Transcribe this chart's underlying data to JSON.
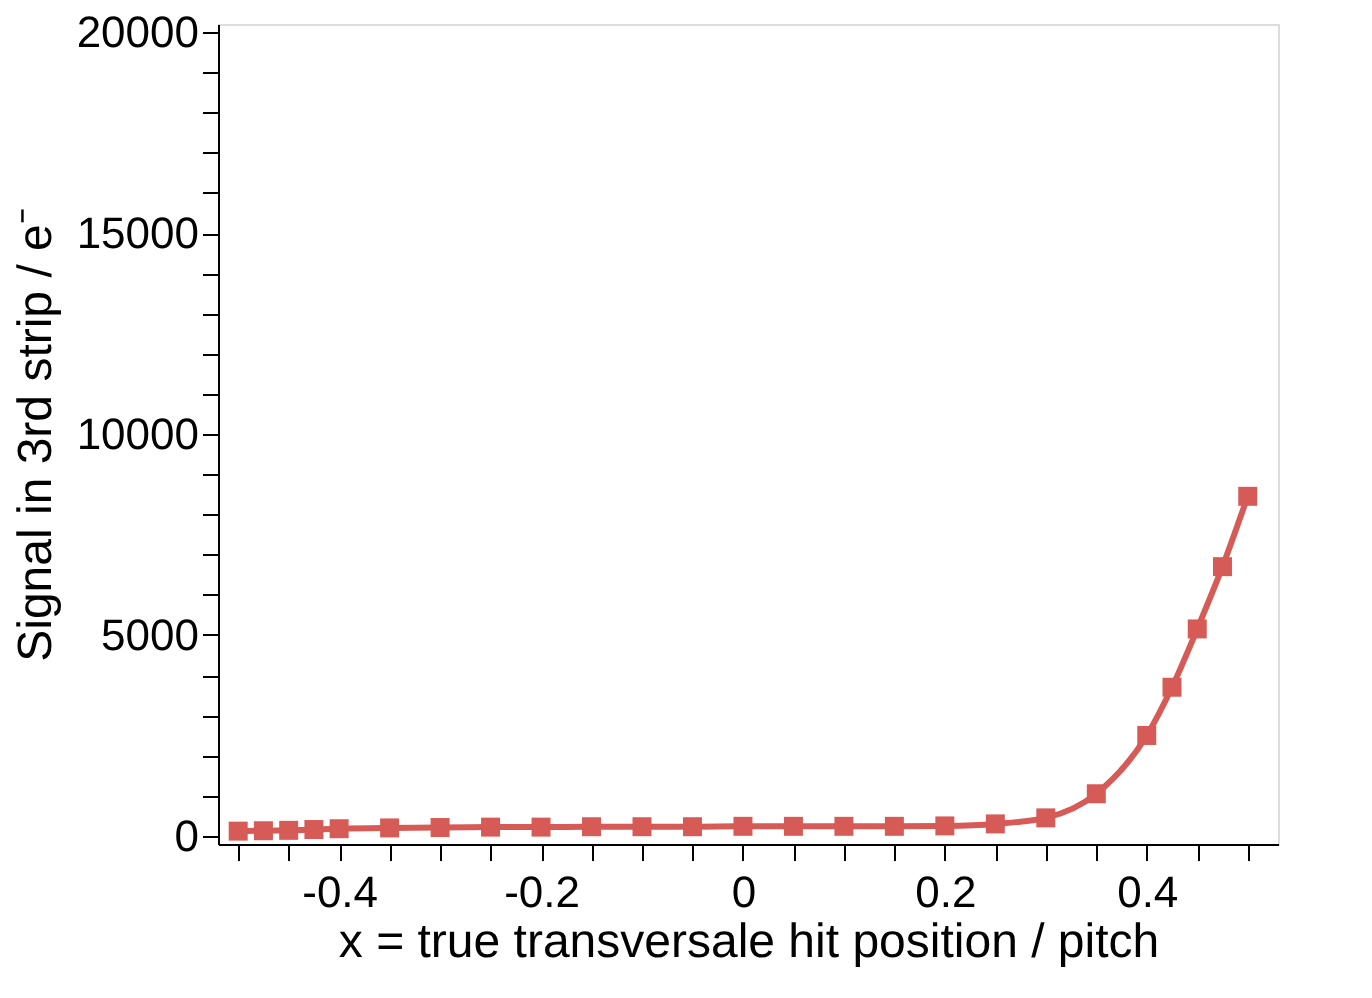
{
  "chart_data": {
    "type": "line",
    "xlabel": "x = true transversale hit position / pitch",
    "ylabel": "Signal in 3rd strip / e⁻",
    "x": [
      -0.5,
      -0.475,
      -0.45,
      -0.425,
      -0.4,
      -0.35,
      -0.3,
      -0.25,
      -0.2,
      -0.15,
      -0.1,
      -0.05,
      0,
      0.05,
      0.1,
      0.15,
      0.2,
      0.25,
      0.3,
      0.35,
      0.4,
      0.425,
      0.45,
      0.475,
      0.5
    ],
    "series": [
      {
        "color": "#d65a55",
        "values": [
          120,
          130,
          140,
          160,
          180,
          200,
          210,
          220,
          220,
          230,
          230,
          230,
          240,
          240,
          240,
          240,
          250,
          300,
          450,
          1050,
          2500,
          3700,
          5150,
          6700,
          8450
        ]
      }
    ],
    "marker": "square",
    "line_style": "solid",
    "xlim": [
      -0.52,
      0.53
    ],
    "ylim": [
      -200,
      20200
    ],
    "xticks": [
      {
        "value": -0.5,
        "label": null
      },
      {
        "value": -0.45,
        "label": null
      },
      -0.4,
      {
        "value": -0.35,
        "label": null
      },
      {
        "value": -0.3,
        "label": null
      },
      {
        "value": -0.25,
        "label": null
      },
      -0.2,
      {
        "value": -0.15,
        "label": null
      },
      {
        "value": -0.1,
        "label": null
      },
      {
        "value": -0.05,
        "label": null
      },
      0,
      {
        "value": 0.05,
        "label": null
      },
      {
        "value": 0.1,
        "label": null
      },
      {
        "value": 0.15,
        "label": null
      },
      0.2,
      {
        "value": 0.25,
        "label": null
      },
      {
        "value": 0.3,
        "label": null
      },
      {
        "value": 0.35,
        "label": null
      },
      0.4,
      {
        "value": 0.45,
        "label": null
      },
      {
        "value": 0.5,
        "label": null
      }
    ],
    "yticks": [
      0,
      {
        "value": 1000,
        "label": null
      },
      {
        "value": 2000,
        "label": null
      },
      {
        "value": 3000,
        "label": null
      },
      {
        "value": 4000,
        "label": null
      },
      5000,
      {
        "value": 6000,
        "label": null
      },
      {
        "value": 7000,
        "label": null
      },
      {
        "value": 8000,
        "label": null
      },
      {
        "value": 9000,
        "label": null
      },
      10000,
      {
        "value": 11000,
        "label": null
      },
      {
        "value": 12000,
        "label": null
      },
      {
        "value": 13000,
        "label": null
      },
      {
        "value": 14000,
        "label": null
      },
      15000,
      {
        "value": 16000,
        "label": null
      },
      {
        "value": 17000,
        "label": null
      },
      {
        "value": 18000,
        "label": null
      },
      {
        "value": 19000,
        "label": null
      },
      20000
    ],
    "grid": false
  }
}
